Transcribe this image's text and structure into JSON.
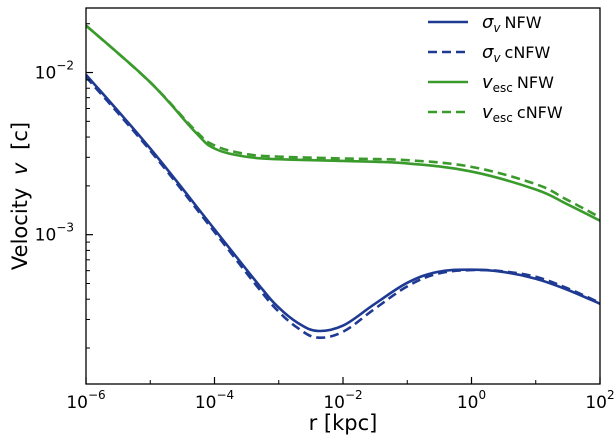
{
  "chart_data": {
    "type": "line",
    "xscale": "log",
    "yscale": "log",
    "xlim": [
      1e-06,
      100
    ],
    "ylim": [
      0.00012,
      0.025
    ],
    "xlabel": "r [kpc]",
    "ylabel_text": "Velocity",
    "ylabel_var": "v",
    "ylabel_unit": "[c]",
    "legend_position": "top-right",
    "x_ticks": [
      {
        "base": "10",
        "exp": "−6",
        "value": 1e-06
      },
      {
        "base": "10",
        "exp": "−4",
        "value": 0.0001
      },
      {
        "base": "10",
        "exp": "−2",
        "value": 0.01
      },
      {
        "base": "10",
        "exp": "0",
        "value": 1
      },
      {
        "base": "10",
        "exp": "2",
        "value": 100
      }
    ],
    "y_ticks": [
      {
        "base": "10",
        "exp": "−3",
        "value": 0.001
      },
      {
        "base": "10",
        "exp": "−2",
        "value": 0.01
      }
    ],
    "series": [
      {
        "name": "σv NFW",
        "symbol": "σ",
        "sub": "v",
        "suffix": "NFW",
        "color": "#1f3a93",
        "dash": "solid",
        "x": [
          1e-06,
          1e-05,
          0.0001,
          0.0005,
          0.001,
          0.002,
          0.004,
          0.01,
          0.03,
          0.1,
          0.3,
          1,
          3,
          10,
          30,
          100
        ],
        "y": [
          0.0097,
          0.0034,
          0.00108,
          0.000485,
          0.000355,
          0.000285,
          0.000255,
          0.000275,
          0.00037,
          0.000505,
          0.00059,
          0.000608,
          0.00059,
          0.000535,
          0.00046,
          0.000375
        ]
      },
      {
        "name": "σv cNFW",
        "symbol": "σ",
        "sub": "v",
        "suffix": "cNFW",
        "color": "#1f3a93",
        "dash": "dashed",
        "x": [
          1e-06,
          1e-05,
          0.0001,
          0.0005,
          0.001,
          0.002,
          0.004,
          0.01,
          0.03,
          0.1,
          0.3,
          1,
          3,
          10,
          30,
          100
        ],
        "y": [
          0.0094,
          0.0033,
          0.00104,
          0.00046,
          0.000335,
          0.000265,
          0.000232,
          0.000252,
          0.000345,
          0.00048,
          0.000575,
          0.000605,
          0.000595,
          0.00055,
          0.00047,
          0.00038
        ]
      },
      {
        "name": "vesc NFW",
        "symbol": "v",
        "sub": "esc",
        "suffix": "NFW",
        "color": "#3a9a2c",
        "dash": "solid",
        "x": [
          1e-06,
          1e-05,
          5e-05,
          0.0001,
          0.0003,
          0.001,
          0.01,
          0.1,
          1,
          10,
          30,
          100
        ],
        "y": [
          0.0195,
          0.0087,
          0.0043,
          0.0034,
          0.00303,
          0.00292,
          0.00285,
          0.00275,
          0.00245,
          0.0019,
          0.00155,
          0.00122
        ]
      },
      {
        "name": "vesc cNFW",
        "symbol": "v",
        "sub": "esc",
        "suffix": "cNFW",
        "color": "#3a9a2c",
        "dash": "dashed",
        "x": [
          1e-06,
          1e-05,
          5e-05,
          0.0001,
          0.0003,
          0.001,
          0.01,
          0.1,
          1,
          10,
          30,
          100
        ],
        "y": [
          0.0195,
          0.0087,
          0.0044,
          0.00355,
          0.00315,
          0.00303,
          0.00295,
          0.00288,
          0.00262,
          0.00205,
          0.00165,
          0.00128
        ]
      }
    ]
  }
}
